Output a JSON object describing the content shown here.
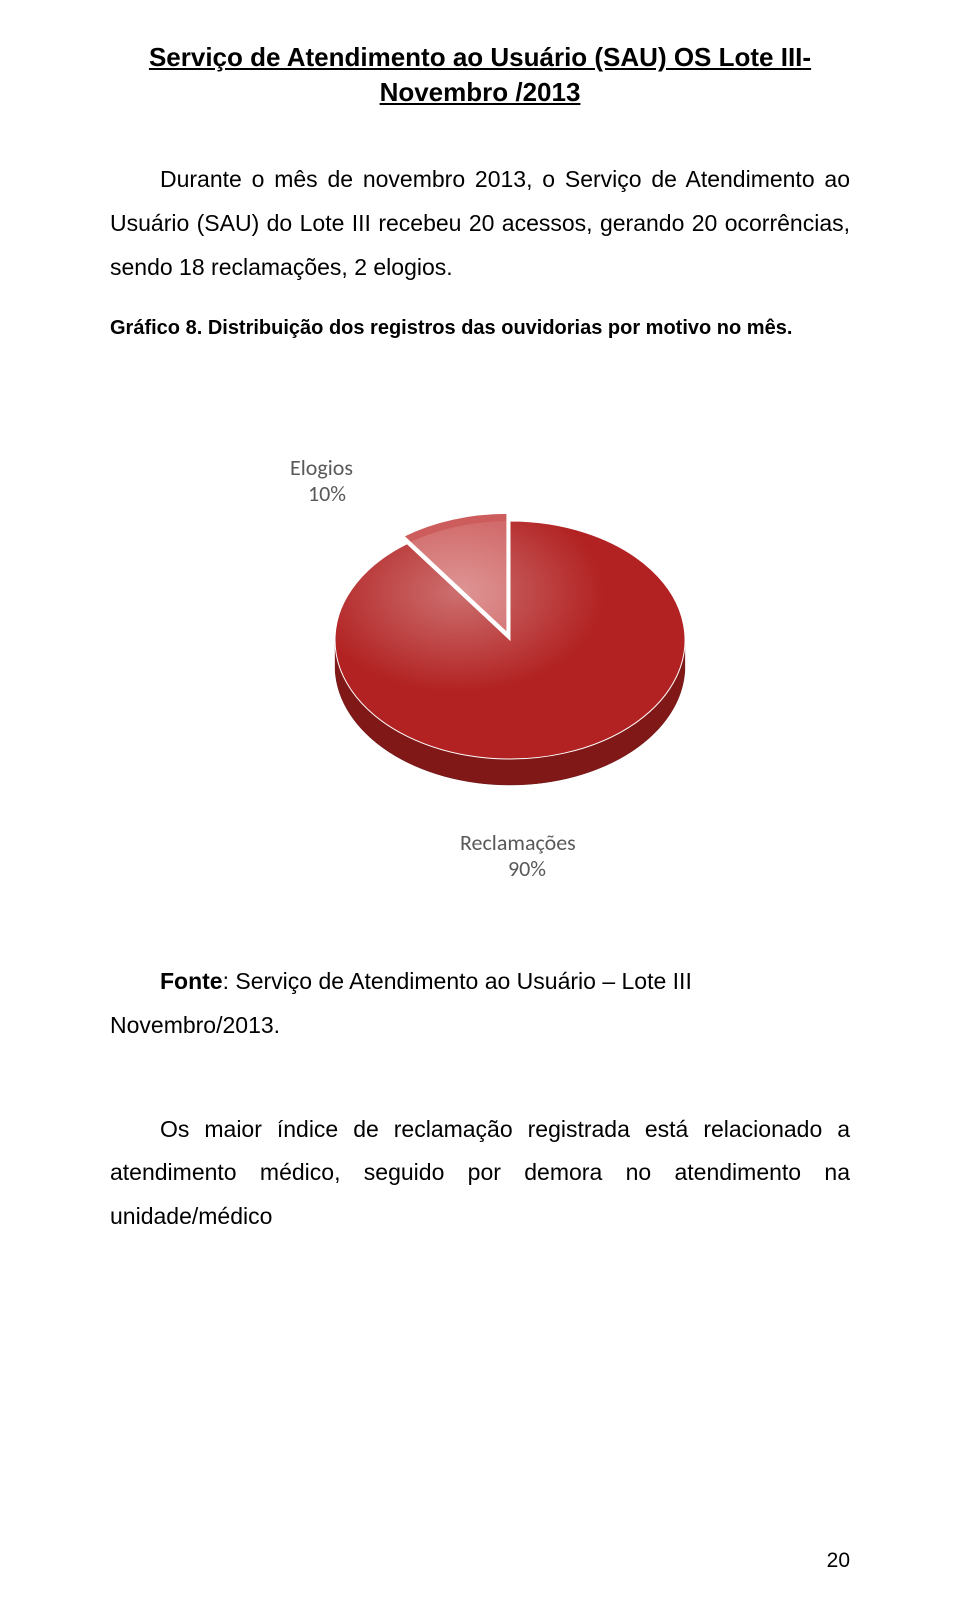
{
  "title_line1": "Serviço de Atendimento ao Usuário (SAU) OS Lote III-",
  "title_line2": "Novembro /2013",
  "paragraph1": "Durante o mês de novembro 2013, o Serviço de Atendimento ao Usuário (SAU) do Lote III recebeu 20 acessos, gerando 20 ocorrências, sendo 18 reclamações, 2 elogios.",
  "caption": "Gráfico 8. Distribuição dos registros das ouvidorias por motivo no mês.",
  "chart": {
    "type": "pie",
    "slices": [
      {
        "label_line1": "Elogios",
        "label_line2": "10%",
        "value": 10,
        "fill": "#cd5c5c",
        "stroke": "#a03f3f"
      },
      {
        "label_line1": "Reclamações",
        "label_line2": "90%",
        "value": 90,
        "fill": "#b22222",
        "stroke": "#8a1a1a"
      }
    ],
    "background": "#ffffff",
    "label_color": "#595959",
    "label_fontsize": 22,
    "radius": 175,
    "depth": 26
  },
  "source_bold": "Fonte",
  "source_rest": ": Serviço de Atendimento ao Usuário – Lote III Novembro/2013.",
  "paragraph2": "Os maior índice de reclamação registrada está relacionado a  atendimento médico, seguido por demora no atendimento na unidade/médico",
  "page_number": "20"
}
